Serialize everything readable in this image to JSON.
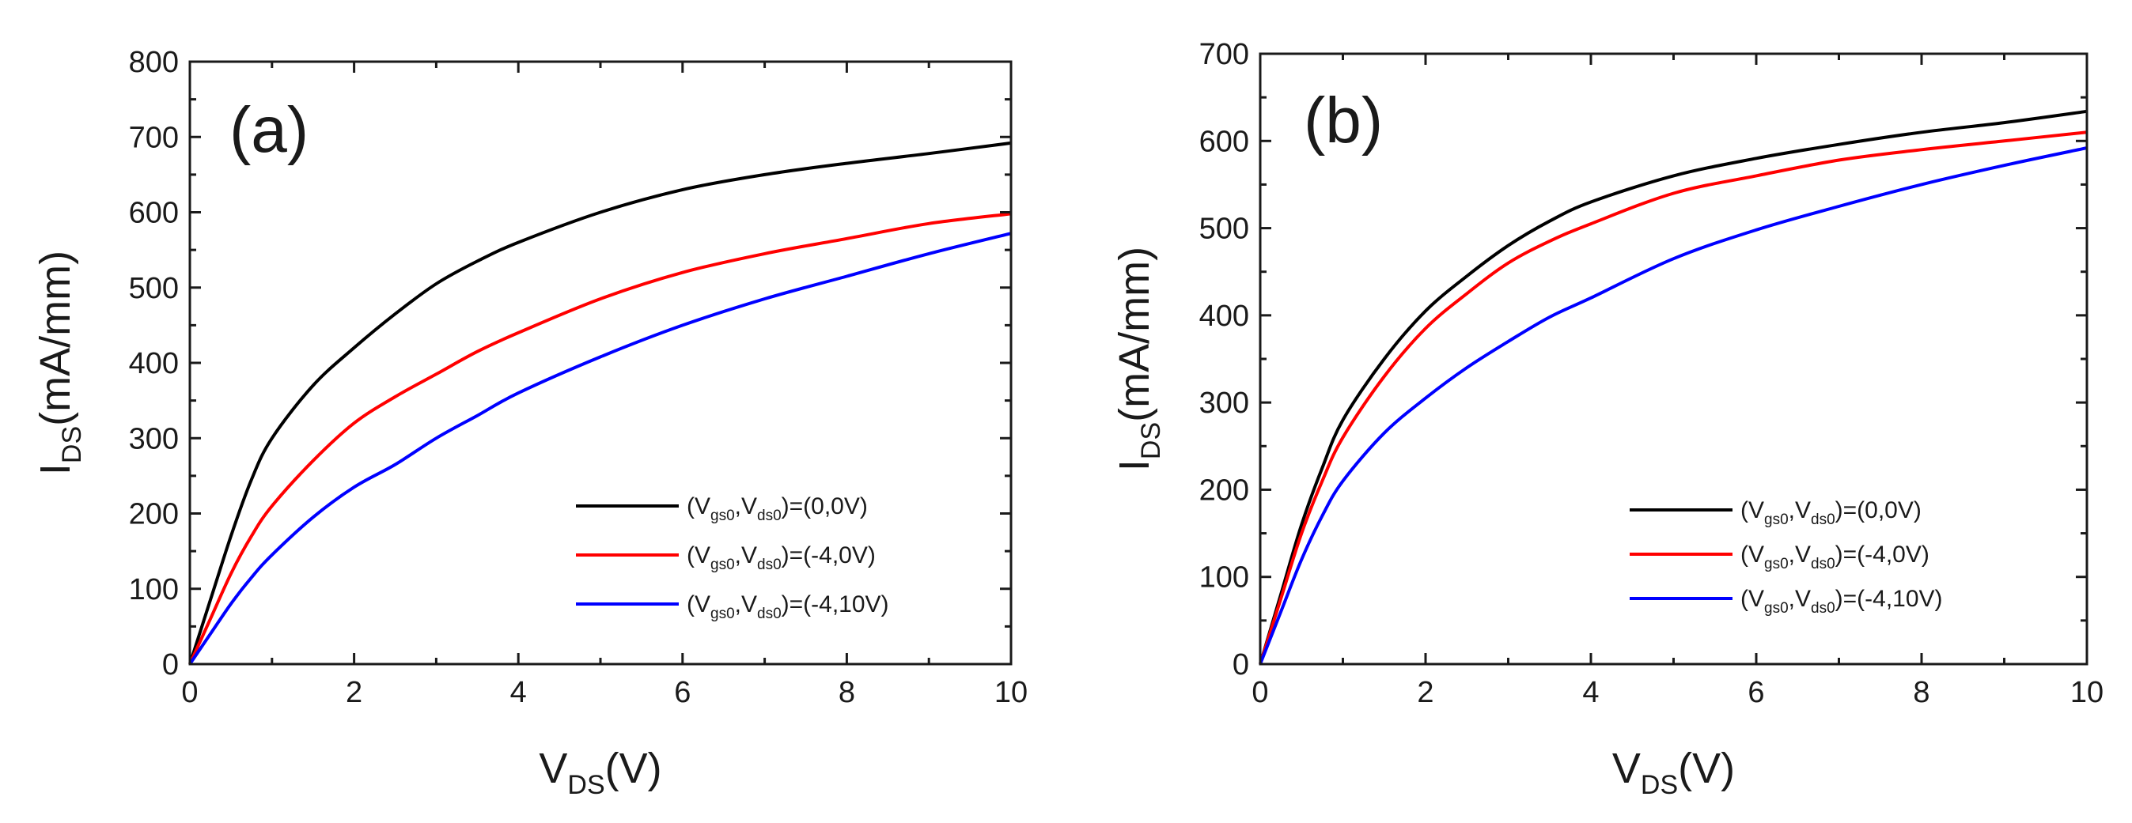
{
  "chart_data": [
    {
      "type": "line",
      "panel_label": "(a)",
      "xlabel": {
        "main": "V",
        "sub": "DS",
        "unit": "(V)"
      },
      "ylabel": {
        "main": "I",
        "sub": "DS",
        "unit": "(mA/mm)"
      },
      "xlim": [
        0,
        10
      ],
      "ylim": [
        0,
        800
      ],
      "xticks": [
        0,
        2,
        4,
        6,
        8,
        10
      ],
      "xtick_labels": [
        "0",
        "2",
        "4",
        "6",
        "8",
        "10"
      ],
      "yticks": [
        0,
        100,
        200,
        300,
        400,
        500,
        600,
        700,
        800
      ],
      "ytick_labels": [
        "0",
        "100",
        "200",
        "300",
        "400",
        "500",
        "600",
        "700",
        "800"
      ],
      "legend_position": "bottom-right",
      "series": [
        {
          "name": "(Vgs0,Vds0)=(0,0V)",
          "legend": {
            "p1": "(V",
            "s1": "gs0",
            "p2": ",V",
            "s2": "ds0",
            "p3": ")=(0,0V)"
          },
          "color": "#000000",
          "x": [
            0,
            0.25,
            0.5,
            0.75,
            1,
            1.5,
            2,
            2.5,
            3,
            3.5,
            4,
            5,
            6,
            7,
            8,
            9,
            10
          ],
          "y": [
            0,
            85,
            170,
            245,
            300,
            370,
            420,
            465,
            505,
            535,
            560,
            600,
            630,
            650,
            665,
            678,
            692
          ]
        },
        {
          "name": "(Vgs0,Vds0)=(-4,0V)",
          "legend": {
            "p1": "(V",
            "s1": "gs0",
            "p2": ",V",
            "s2": "ds0",
            "p3": ")=(-4,0V)"
          },
          "color": "#ff0000",
          "x": [
            0,
            0.25,
            0.5,
            0.75,
            1,
            1.5,
            2,
            2.5,
            3,
            3.5,
            4,
            5,
            6,
            7,
            8,
            9,
            10
          ],
          "y": [
            0,
            60,
            120,
            170,
            210,
            270,
            320,
            355,
            385,
            415,
            440,
            485,
            520,
            545,
            565,
            585,
            598
          ]
        },
        {
          "name": "(Vgs0,Vds0)=(-4,10V)",
          "legend": {
            "p1": "(V",
            "s1": "gs0",
            "p2": ",V",
            "s2": "ds0",
            "p3": ")=(-4,10V)"
          },
          "color": "#0000ff",
          "x": [
            0,
            0.25,
            0.5,
            0.75,
            1,
            1.5,
            2,
            2.5,
            3,
            3.5,
            4,
            5,
            6,
            7,
            8,
            9,
            10
          ],
          "y": [
            0,
            40,
            80,
            115,
            145,
            195,
            235,
            265,
            300,
            330,
            360,
            408,
            450,
            485,
            515,
            545,
            572
          ]
        }
      ]
    },
    {
      "type": "line",
      "panel_label": "(b)",
      "xlabel": {
        "main": "V",
        "sub": "DS",
        "unit": "(V)"
      },
      "ylabel": {
        "main": "I",
        "sub": "DS",
        "unit": "(mA/mm)"
      },
      "xlim": [
        0,
        10
      ],
      "ylim": [
        0,
        700
      ],
      "xticks": [
        0,
        2,
        4,
        6,
        8,
        10
      ],
      "xtick_labels": [
        "0",
        "2",
        "4",
        "6",
        "8",
        "10"
      ],
      "yticks": [
        0,
        100,
        200,
        300,
        400,
        500,
        600,
        700
      ],
      "ytick_labels": [
        "0",
        "100",
        "200",
        "300",
        "400",
        "500",
        "600",
        "700"
      ],
      "legend_position": "bottom-right",
      "series": [
        {
          "name": "(Vgs0,Vds0)=(0,0V)",
          "legend": {
            "p1": "(V",
            "s1": "gs0",
            "p2": ",V",
            "s2": "ds0",
            "p3": ")=(0,0V)"
          },
          "color": "#000000",
          "x": [
            0,
            0.25,
            0.5,
            0.75,
            1,
            1.5,
            2,
            2.5,
            3,
            3.5,
            4,
            5,
            6,
            7,
            8,
            9,
            10
          ],
          "y": [
            0,
            80,
            160,
            225,
            280,
            350,
            405,
            445,
            480,
            508,
            530,
            560,
            580,
            596,
            610,
            621,
            634
          ]
        },
        {
          "name": "(Vgs0,Vds0)=(-4,0V)",
          "legend": {
            "p1": "(V",
            "s1": "gs0",
            "p2": ",V",
            "s2": "ds0",
            "p3": ")=(-4,0V)"
          },
          "color": "#ff0000",
          "x": [
            0,
            0.25,
            0.5,
            0.75,
            1,
            1.5,
            2,
            2.5,
            3,
            3.5,
            4,
            5,
            6,
            7,
            8,
            9,
            10
          ],
          "y": [
            0,
            75,
            150,
            210,
            260,
            330,
            385,
            425,
            460,
            485,
            505,
            540,
            560,
            578,
            590,
            600,
            610
          ]
        },
        {
          "name": "(Vgs0,Vds0)=(-4,10V)",
          "legend": {
            "p1": "(V",
            "s1": "gs0",
            "p2": ",V",
            "s2": "ds0",
            "p3": ")=(-4,10V)"
          },
          "color": "#0000ff",
          "x": [
            0,
            0.25,
            0.5,
            0.75,
            1,
            1.5,
            2,
            2.5,
            3,
            3.5,
            4,
            5,
            6,
            7,
            8,
            9,
            10
          ],
          "y": [
            0,
            60,
            120,
            170,
            210,
            265,
            305,
            340,
            370,
            398,
            420,
            465,
            498,
            525,
            550,
            572,
            592
          ]
        }
      ]
    }
  ]
}
